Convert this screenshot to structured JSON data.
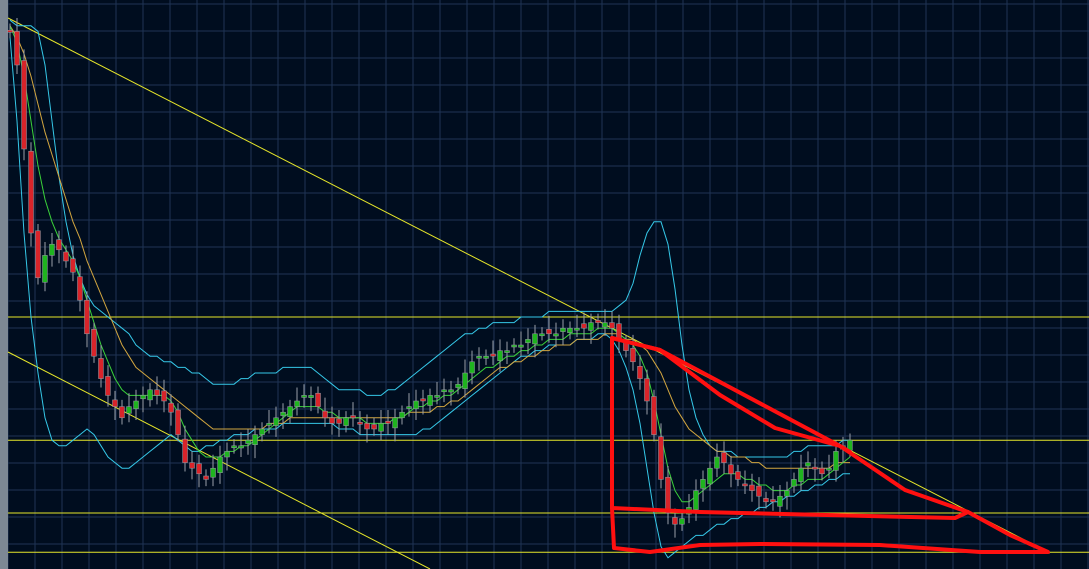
{
  "colors": {
    "background": "#000d1f",
    "grid": "#1f3354",
    "left_edge": "#7d8894",
    "candle_up": "#1fb41f",
    "candle_down": "#d8242a",
    "candle_wick": "#9aa0a8",
    "bollinger": "#35c8e8",
    "ma_fast": "#3ad23a",
    "ma_slow": "#d2a640",
    "trendline": "#e6e62a",
    "annotation": "#ff1010"
  },
  "chart_data": {
    "type": "candlestick",
    "title": "",
    "xlabel": "",
    "ylabel": "",
    "grid": true,
    "ylim": [
      0,
      100
    ],
    "close": [
      96,
      90,
      75,
      60,
      52,
      56,
      58,
      57,
      55,
      53,
      48,
      42,
      38,
      34,
      31,
      29,
      27,
      29,
      30,
      31,
      32,
      31,
      30,
      28,
      24,
      19,
      18,
      17,
      16,
      18,
      20,
      21,
      22,
      22,
      23,
      24,
      25,
      26,
      27,
      28,
      29,
      30,
      31,
      31,
      29,
      27,
      26,
      26,
      27,
      27,
      26,
      25,
      25,
      26,
      26,
      27,
      28,
      29,
      30,
      30,
      31,
      31,
      32,
      32,
      33,
      35,
      37,
      38,
      38,
      38,
      39,
      39,
      40,
      40,
      41,
      42,
      42,
      42,
      42,
      43,
      43,
      43,
      43,
      44,
      44,
      44,
      43,
      41,
      39,
      37,
      34,
      30,
      24,
      16,
      10,
      8,
      9,
      11,
      14,
      16,
      18,
      20,
      19,
      17,
      16,
      15,
      14,
      13,
      12,
      12,
      13,
      14,
      16,
      18,
      19,
      18,
      17,
      18,
      21,
      22,
      23
    ],
    "bollinger_upper": [
      98,
      97,
      97,
      97,
      96,
      90,
      80,
      70,
      62,
      56,
      52,
      49,
      47,
      46,
      45,
      44,
      43,
      42,
      40,
      39,
      38,
      38,
      37,
      37,
      36,
      36,
      35,
      35,
      34,
      33,
      33,
      33,
      33,
      34,
      34,
      35,
      35,
      35,
      35,
      36,
      36,
      36,
      36,
      36,
      35,
      34,
      33,
      32,
      32,
      32,
      32,
      31,
      31,
      31,
      32,
      32,
      33,
      34,
      35,
      36,
      37,
      38,
      39,
      40,
      41,
      42,
      42,
      43,
      43,
      44,
      44,
      44,
      44,
      45,
      45,
      45,
      45,
      46,
      46,
      46,
      46,
      46,
      46,
      46,
      46,
      46,
      46,
      47,
      48,
      51,
      56,
      60,
      62,
      62,
      58,
      50,
      40,
      32,
      27,
      24,
      22,
      21,
      21,
      21,
      20,
      20,
      20,
      20,
      20,
      20,
      20,
      20,
      21,
      21,
      22,
      22,
      22,
      22,
      22,
      23,
      23
    ],
    "bollinger_lower": [
      95,
      80,
      60,
      45,
      35,
      27,
      23,
      22,
      22,
      23,
      24,
      25,
      24,
      22,
      20,
      19,
      18,
      18,
      19,
      20,
      21,
      22,
      23,
      24,
      23,
      22,
      21,
      21,
      22,
      22,
      23,
      23,
      24,
      24,
      24,
      25,
      25,
      25,
      25,
      26,
      26,
      26,
      26,
      26,
      26,
      26,
      26,
      25,
      25,
      25,
      24,
      24,
      24,
      24,
      24,
      24,
      24,
      24,
      24,
      25,
      25,
      26,
      27,
      28,
      29,
      30,
      31,
      32,
      33,
      34,
      35,
      36,
      37,
      38,
      38,
      39,
      39,
      40,
      40,
      40,
      40,
      41,
      41,
      41,
      42,
      42,
      41,
      39,
      36,
      32,
      26,
      18,
      10,
      4,
      2,
      3,
      4,
      5,
      6,
      6,
      7,
      8,
      8,
      9,
      9,
      10,
      10,
      11,
      11,
      12,
      12,
      13,
      13,
      14,
      14,
      15,
      15,
      16,
      16,
      17,
      17
    ],
    "ma_fast": [
      97,
      94,
      88,
      80,
      72,
      66,
      62,
      59,
      57,
      55,
      52,
      48,
      44,
      40,
      37,
      34,
      32,
      31,
      31,
      31,
      31,
      31,
      31,
      30,
      28,
      25,
      23,
      21,
      20,
      20,
      20,
      21,
      21,
      22,
      22,
      23,
      24,
      25,
      26,
      27,
      28,
      29,
      29,
      29,
      29,
      28,
      28,
      27,
      27,
      27,
      27,
      26,
      26,
      26,
      26,
      27,
      27,
      28,
      29,
      29,
      30,
      30,
      31,
      31,
      32,
      33,
      34,
      35,
      36,
      36,
      37,
      38,
      38,
      39,
      39,
      40,
      40,
      41,
      41,
      41,
      42,
      42,
      42,
      42,
      43,
      43,
      43,
      42,
      41,
      40,
      38,
      35,
      30,
      24,
      18,
      14,
      12,
      12,
      13,
      14,
      15,
      16,
      17,
      17,
      17,
      16,
      16,
      15,
      15,
      14,
      14,
      14,
      15,
      15,
      16,
      16,
      16,
      17,
      18,
      19,
      20
    ],
    "ma_slow": [
      97,
      95,
      92,
      88,
      83,
      78,
      74,
      70,
      66,
      62,
      59,
      55,
      52,
      49,
      46,
      43,
      40,
      38,
      36,
      35,
      34,
      33,
      32,
      31,
      30,
      29,
      28,
      27,
      26,
      25,
      25,
      25,
      25,
      25,
      25,
      25,
      25,
      26,
      26,
      26,
      27,
      27,
      27,
      27,
      27,
      27,
      27,
      27,
      27,
      27,
      27,
      27,
      27,
      27,
      27,
      27,
      27,
      28,
      28,
      28,
      28,
      29,
      29,
      30,
      30,
      31,
      32,
      33,
      34,
      35,
      36,
      36,
      37,
      37,
      38,
      38,
      39,
      39,
      40,
      40,
      40,
      41,
      41,
      41,
      41,
      42,
      42,
      42,
      41,
      41,
      40,
      39,
      37,
      35,
      32,
      29,
      27,
      25,
      24,
      23,
      22,
      21,
      21,
      20,
      20,
      20,
      19,
      19,
      18,
      18,
      18,
      18,
      18,
      18,
      18,
      18,
      18,
      18,
      19,
      19,
      19
    ],
    "horizontal_levels": [
      45,
      23,
      10,
      3
    ]
  }
}
